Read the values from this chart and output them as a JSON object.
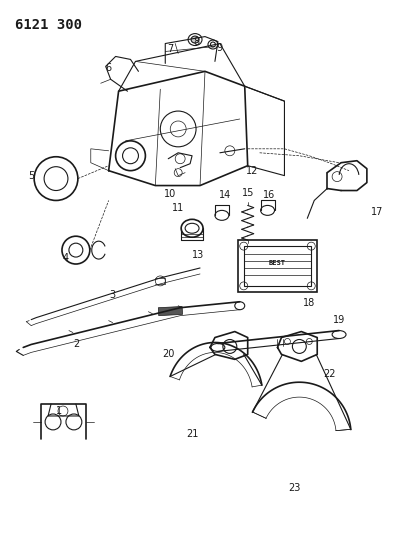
{
  "title": "6121 300",
  "bg_color": "#ffffff",
  "line_color": "#1a1a1a",
  "label_color": "#1a1a1a",
  "title_fontsize": 10,
  "label_fontsize": 7,
  "fig_w": 4.08,
  "fig_h": 5.33,
  "dpi": 100
}
